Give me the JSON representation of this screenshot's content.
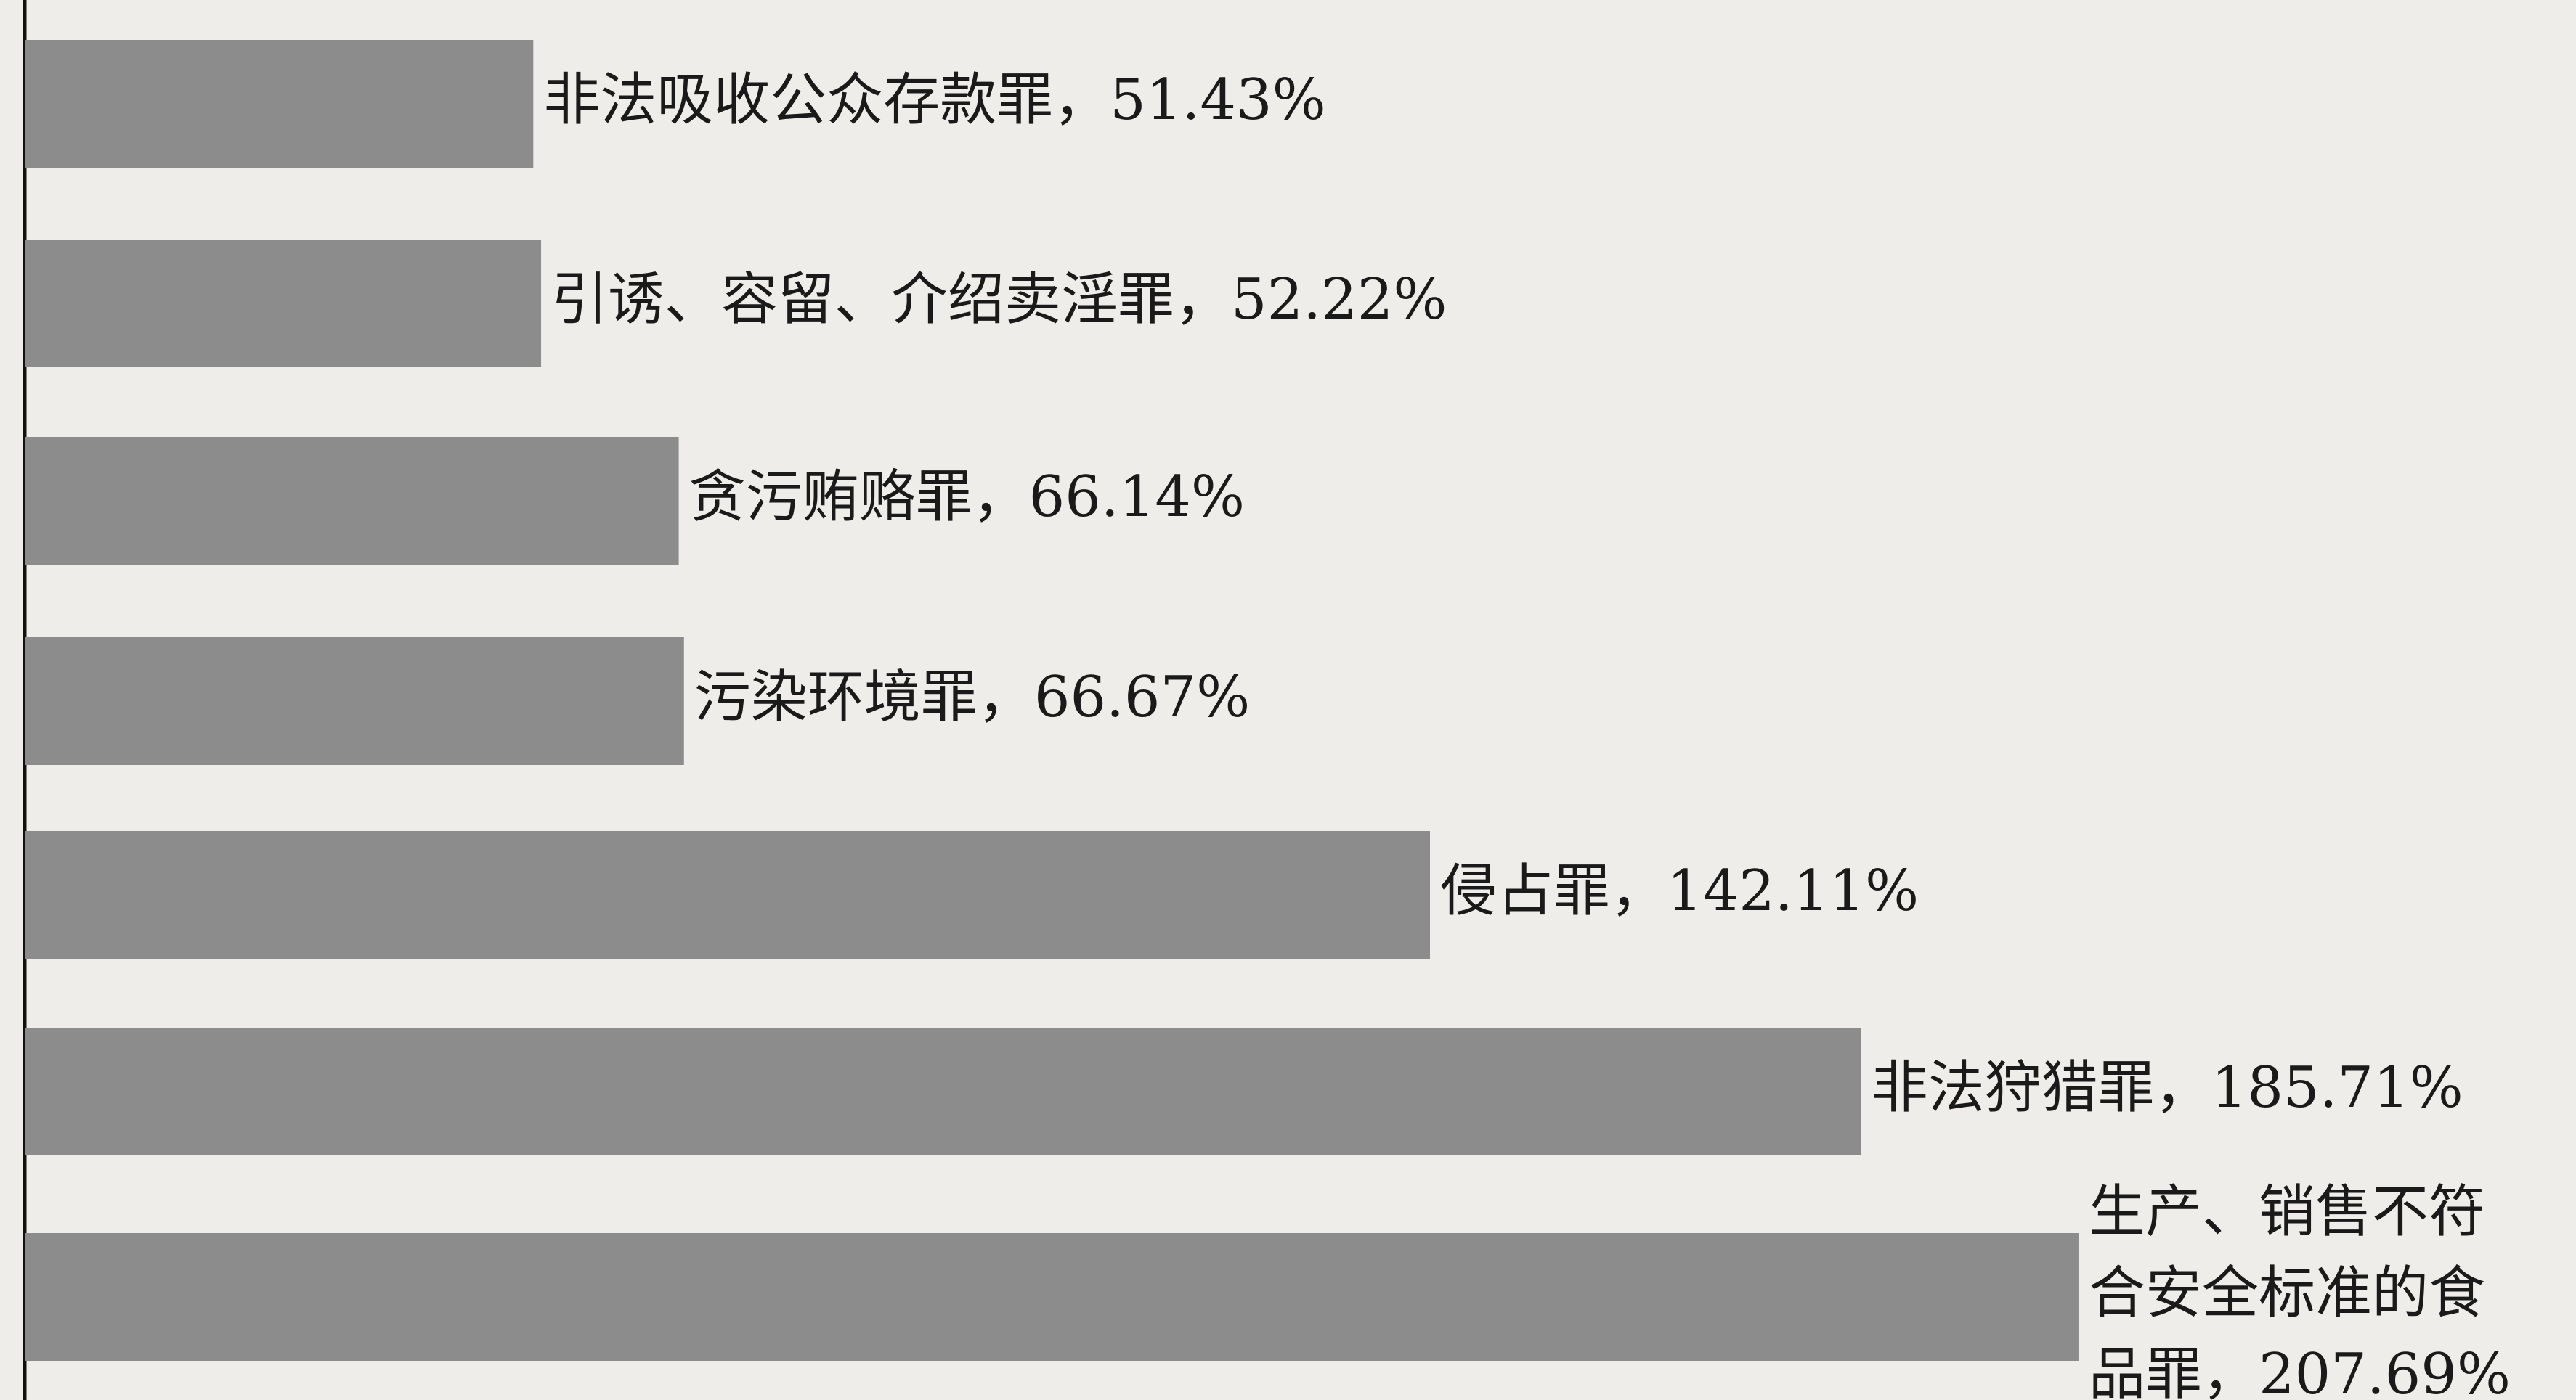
{
  "chart_data": {
    "type": "barh",
    "categories": [
      "非法吸收公众存款罪，",
      "引诱、容留、介绍卖淫罪，",
      "贪污贿赂罪，",
      "污染环境罪，",
      "侵占罪，",
      "非法狩猎罪，",
      "生产、销售不符合安全标准的食品罪，"
    ],
    "values": [
      51.43,
      52.22,
      66.14,
      66.67,
      142.11,
      185.71,
      207.69
    ],
    "value_labels": [
      "51.43%",
      "52.22%",
      "66.14%",
      "66.67%",
      "142.11%",
      "185.71%",
      "207.69%"
    ],
    "color": "#8c8c8c",
    "xlim": [
      0,
      258
    ]
  }
}
